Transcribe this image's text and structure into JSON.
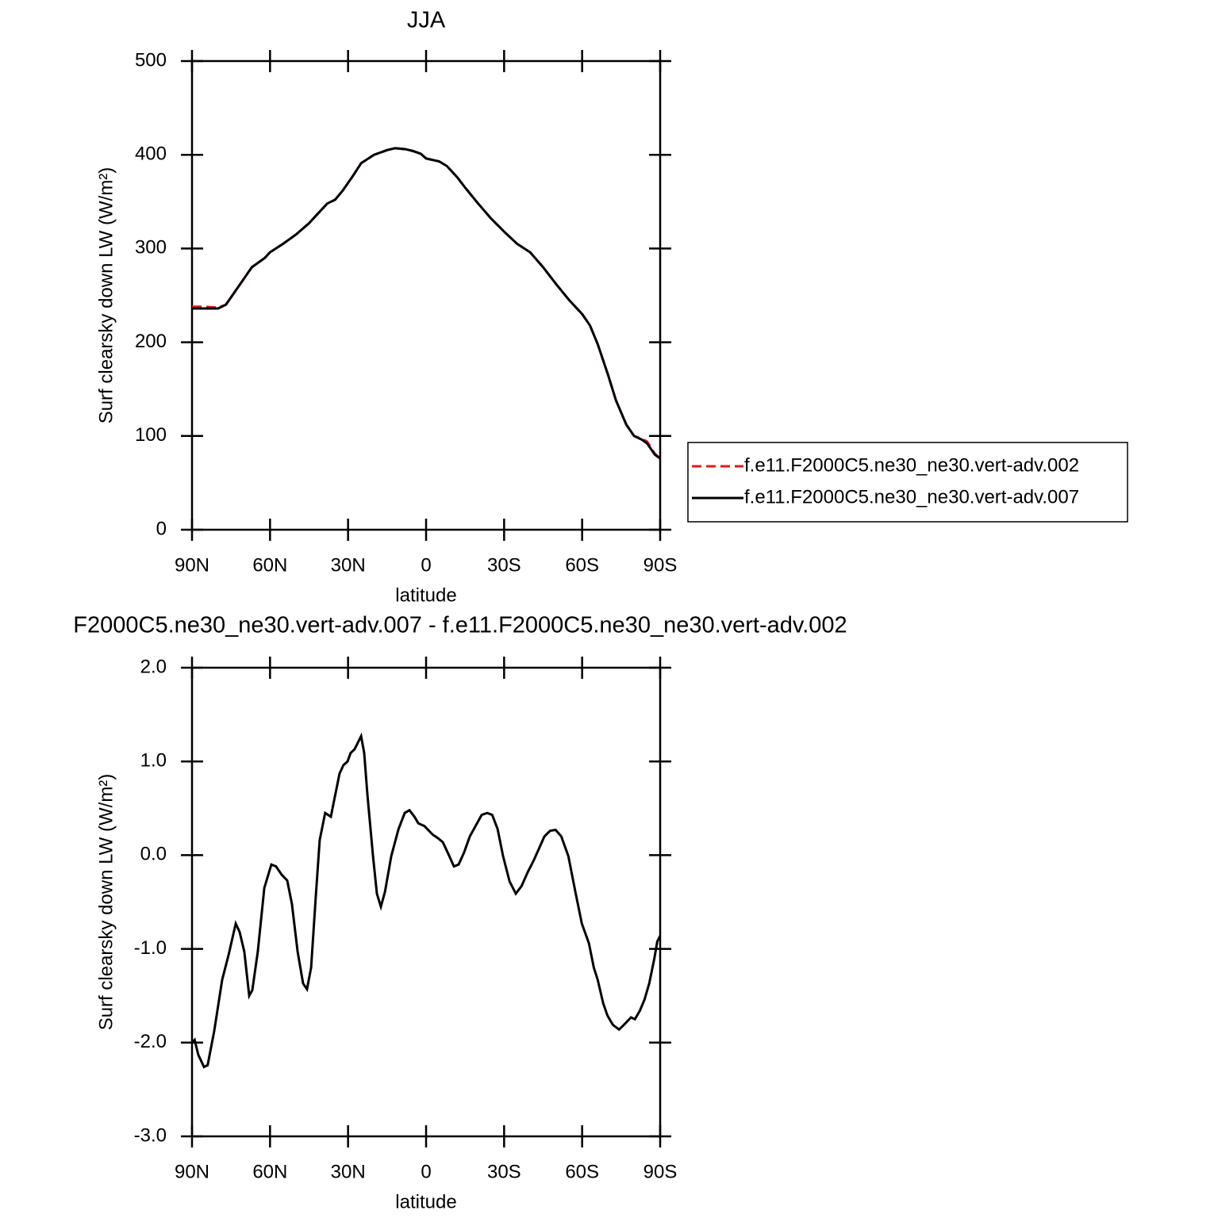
{
  "chart_data": [
    {
      "type": "line",
      "title": "JJA",
      "xlabel": "latitude",
      "ylabel": "Surf clearsky down LW (W/m²)",
      "x": [
        90,
        85,
        80,
        77,
        75,
        70,
        67,
        62,
        60,
        55,
        50,
        45,
        42,
        38,
        35,
        32,
        28,
        25,
        20,
        15,
        12,
        8,
        5,
        2,
        0,
        -5,
        -8,
        -12,
        -15,
        -20,
        -25,
        -30,
        -35,
        -40,
        -45,
        -50,
        -55,
        -60,
        -63,
        -66,
        -70,
        -73,
        -77,
        -80,
        -83,
        -85,
        -88,
        -90
      ],
      "series": [
        {
          "name": "f.e11.F2000C5.ne30_ne30.vert-adv.002",
          "color": "#e41a1c",
          "linestyle": "dashed",
          "values": [
            238,
            238,
            237,
            240,
            248,
            268,
            280,
            290,
            296,
            305,
            315,
            327,
            336,
            348,
            352,
            362,
            378,
            391,
            400,
            405,
            407,
            406,
            404,
            401,
            396,
            393,
            388,
            376,
            365,
            348,
            332,
            318,
            305,
            296,
            280,
            262,
            245,
            230,
            218,
            198,
            165,
            138,
            112,
            100,
            97,
            94,
            81,
            76
          ]
        },
        {
          "name": "f.e11.F2000C5.ne30_ne30.vert-adv.007",
          "color": "#000000",
          "linestyle": "solid",
          "values": [
            236,
            236,
            236,
            240,
            248,
            268,
            280,
            290,
            296,
            305,
            315,
            327,
            336,
            348,
            352,
            362,
            378,
            391,
            400,
            405,
            407,
            406,
            404,
            401,
            396,
            393,
            388,
            376,
            365,
            348,
            332,
            318,
            305,
            296,
            280,
            262,
            245,
            230,
            218,
            198,
            165,
            138,
            112,
            100,
            96,
            92,
            80,
            76
          ]
        }
      ],
      "xlim": [
        90,
        -90
      ],
      "xticks": [
        {
          "value": 90,
          "label": "90N"
        },
        {
          "value": 60,
          "label": "60N"
        },
        {
          "value": 30,
          "label": "30N"
        },
        0,
        {
          "value": -30,
          "label": "30S"
        },
        {
          "value": -60,
          "label": "60S"
        },
        {
          "value": -90,
          "label": "90S"
        }
      ],
      "ylim": [
        0,
        500
      ],
      "yticks": [
        0,
        100,
        200,
        300,
        400,
        500
      ],
      "legend": "right"
    },
    {
      "type": "line",
      "title": "F2000C5.ne30_ne30.vert-adv.007 - f.e11.F2000C5.ne30_ne30.vert-adv.002",
      "xlabel": "latitude",
      "ylabel": "Surf clearsky down LW (W/m²)",
      "x": [
        90,
        89,
        87.6,
        85.4,
        84,
        81.5,
        78.4,
        76,
        73.2,
        71.7,
        69.9,
        68,
        66.8,
        64.7,
        62.2,
        59.5,
        57.7,
        55.5,
        53.4,
        51.6,
        49.4,
        47.3,
        45.8,
        44.2,
        42.4,
        40.9,
        38.8,
        36.6,
        35.4,
        33.3,
        31.8,
        30.2,
        29,
        27.5,
        25,
        23.8,
        22.6,
        20.4,
        18.9,
        17.4,
        15.8,
        13.4,
        10.6,
        8.2,
        6.4,
        4.5,
        3,
        0.6,
        -2.5,
        -4.6,
        -6.4,
        -8.6,
        -10.7,
        -12.5,
        -14.6,
        -16.8,
        -19.2,
        -21.4,
        -23.5,
        -25.4,
        -27.5,
        -29.6,
        -32.1,
        -34.5,
        -36.7,
        -39.1,
        -41.3,
        -43.4,
        -45.5,
        -47.7,
        -49.8,
        -52,
        -54.7,
        -57.4,
        -59.9,
        -62.6,
        -64.5,
        -66,
        -68.1,
        -69.7,
        -71.8,
        -74.2,
        -76.1,
        -78.8,
        -80.3,
        -82.2,
        -84,
        -85.8,
        -87.7,
        -88.9,
        -90
      ],
      "series": [
        {
          "color": "#000000",
          "linestyle": "solid",
          "values": [
            -2.0,
            -1.97,
            -2.13,
            -2.26,
            -2.24,
            -1.88,
            -1.33,
            -1.07,
            -0.73,
            -0.82,
            -1.03,
            -1.5,
            -1.44,
            -1.03,
            -0.35,
            -0.1,
            -0.12,
            -0.21,
            -0.27,
            -0.52,
            -1.03,
            -1.37,
            -1.43,
            -1.2,
            -0.44,
            0.16,
            0.45,
            0.41,
            0.58,
            0.87,
            0.96,
            1.0,
            1.09,
            1.13,
            1.27,
            1.09,
            0.66,
            -0.01,
            -0.41,
            -0.55,
            -0.39,
            -0.01,
            0.28,
            0.45,
            0.48,
            0.41,
            0.34,
            0.31,
            0.22,
            0.18,
            0.14,
            0.01,
            -0.12,
            -0.1,
            0.03,
            0.2,
            0.32,
            0.43,
            0.45,
            0.43,
            0.28,
            -0.01,
            -0.28,
            -0.41,
            -0.33,
            -0.18,
            -0.06,
            0.07,
            0.2,
            0.26,
            0.27,
            0.2,
            -0.01,
            -0.39,
            -0.73,
            -0.94,
            -1.2,
            -1.33,
            -1.58,
            -1.71,
            -1.81,
            -1.86,
            -1.81,
            -1.73,
            -1.75,
            -1.66,
            -1.54,
            -1.37,
            -1.11,
            -0.92,
            -0.86
          ]
        }
      ],
      "xlim": [
        90,
        -90
      ],
      "xticks": [
        {
          "value": 90,
          "label": "90N"
        },
        {
          "value": 60,
          "label": "60N"
        },
        {
          "value": 30,
          "label": "30N"
        },
        0,
        {
          "value": -30,
          "label": "30S"
        },
        {
          "value": -60,
          "label": "60S"
        },
        {
          "value": -90,
          "label": "90S"
        }
      ],
      "ylim": [
        -3,
        2
      ],
      "yticks": [
        {
          "value": -3,
          "label": "-3.0"
        },
        {
          "value": -2,
          "label": "-2.0"
        },
        {
          "value": -1,
          "label": "-1.0"
        },
        {
          "value": 0,
          "label": "0.0"
        },
        {
          "value": 1,
          "label": "1.0"
        },
        {
          "value": 2,
          "label": "2.0"
        }
      ]
    }
  ]
}
